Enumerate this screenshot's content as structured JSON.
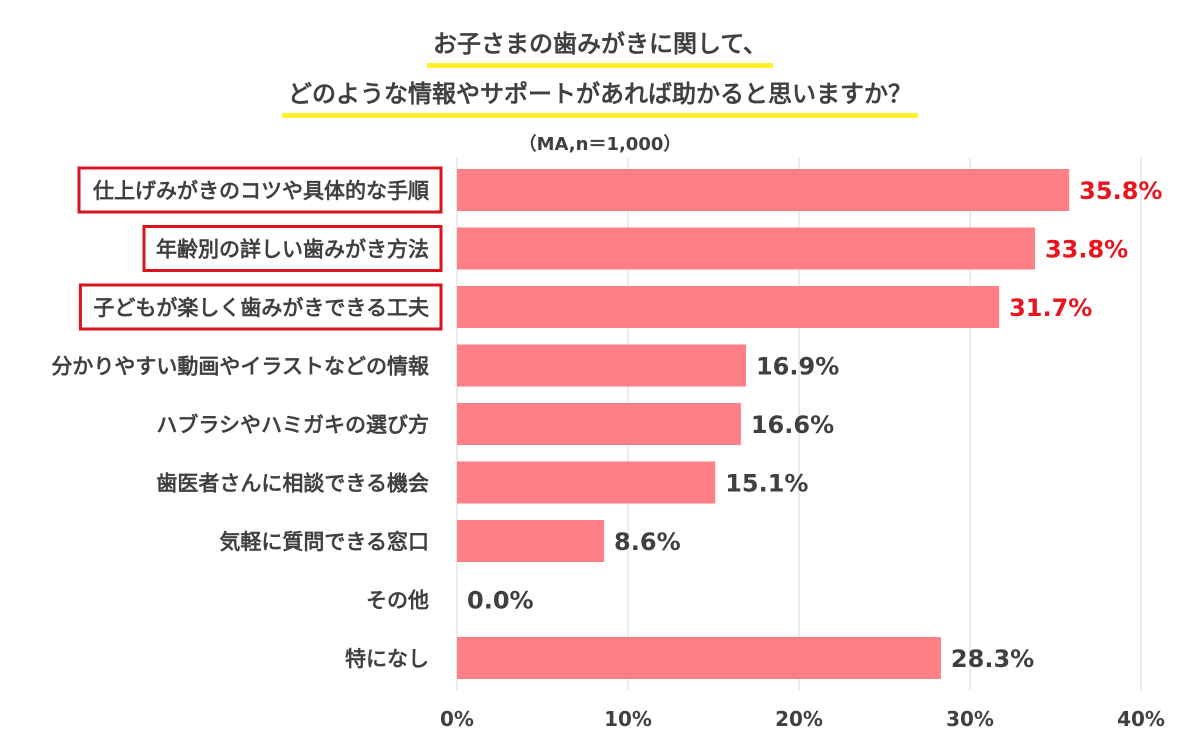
{
  "chart_data": {
    "type": "bar",
    "orientation": "horizontal",
    "title_lines": [
      "お子さまの歯みがきに関して、",
      "どのような情報やサポートがあれば助かると思いますか？"
    ],
    "subtitle": "（MA,n＝1,000）",
    "categories": [
      "仕上げみがきのコツや具体的な手順",
      "年齢別の詳しい歯みがき方法",
      "子どもが楽しく歯みがきできる工夫",
      "分かりやすい動画やイラストなどの情報",
      "ハブラシやハミガキの選び方",
      "歯医者さんに相談できる機会",
      "気軽に質問できる窓口",
      "その他",
      "特になし"
    ],
    "values": [
      35.8,
      33.8,
      31.7,
      16.9,
      16.6,
      15.1,
      8.6,
      0.0,
      28.3
    ],
    "value_labels": [
      "35.8%",
      "33.8%",
      "31.7%",
      "16.9%",
      "16.6%",
      "15.1%",
      "8.6%",
      "0.0%",
      "28.3%"
    ],
    "highlighted": [
      true,
      true,
      true,
      false,
      false,
      false,
      false,
      false,
      false
    ],
    "xlim": [
      0,
      40
    ],
    "xticks": [
      0,
      10,
      20,
      30,
      40
    ],
    "xtick_labels": [
      "0%",
      "10%",
      "20%",
      "30%",
      "40%"
    ],
    "grid": true,
    "colors": {
      "bar": "#ff7f86",
      "highlight_text": "#e8141e",
      "highlight_box": "#d9141e",
      "title_underline": "#ffef2f",
      "text": "#404040",
      "grid": "#d9d9d9"
    }
  }
}
